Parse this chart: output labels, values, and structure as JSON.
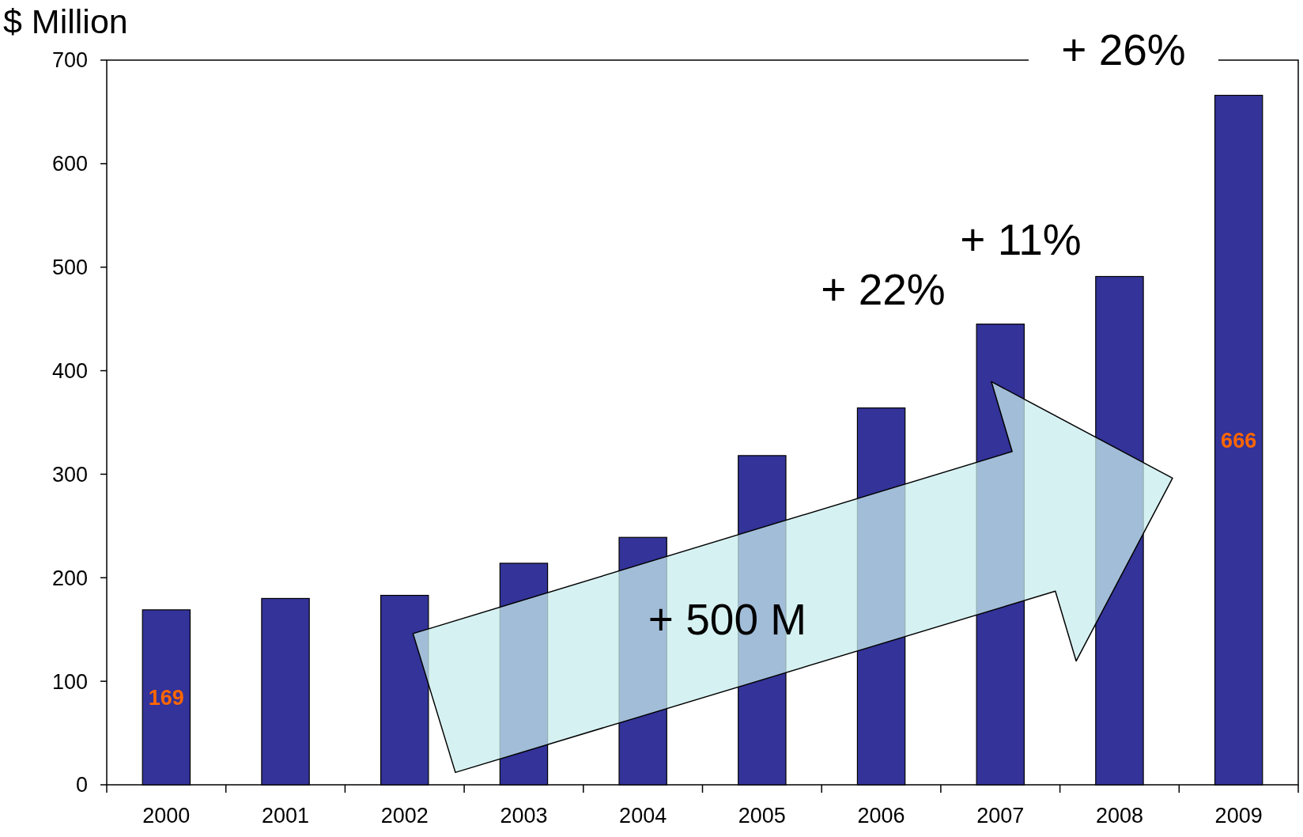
{
  "chart_data": {
    "type": "bar",
    "ylabel": "$ Million",
    "categories": [
      "2000",
      "2001",
      "2002",
      "2003",
      "2004",
      "2005",
      "2006",
      "2007",
      "2008",
      "2009"
    ],
    "values": [
      169,
      180,
      183,
      214,
      239,
      318,
      364,
      445,
      491,
      666
    ],
    "value_labels": [
      "169",
      null,
      null,
      null,
      null,
      null,
      null,
      null,
      null,
      "666"
    ],
    "color": "#333399",
    "ylim": [
      0,
      700
    ],
    "yticks": [
      0,
      100,
      200,
      300,
      400,
      500,
      600,
      700
    ],
    "grid": false,
    "annotations": [
      "+ 26%",
      "+ 11%",
      "+ 22%",
      "+ 500 M"
    ]
  }
}
